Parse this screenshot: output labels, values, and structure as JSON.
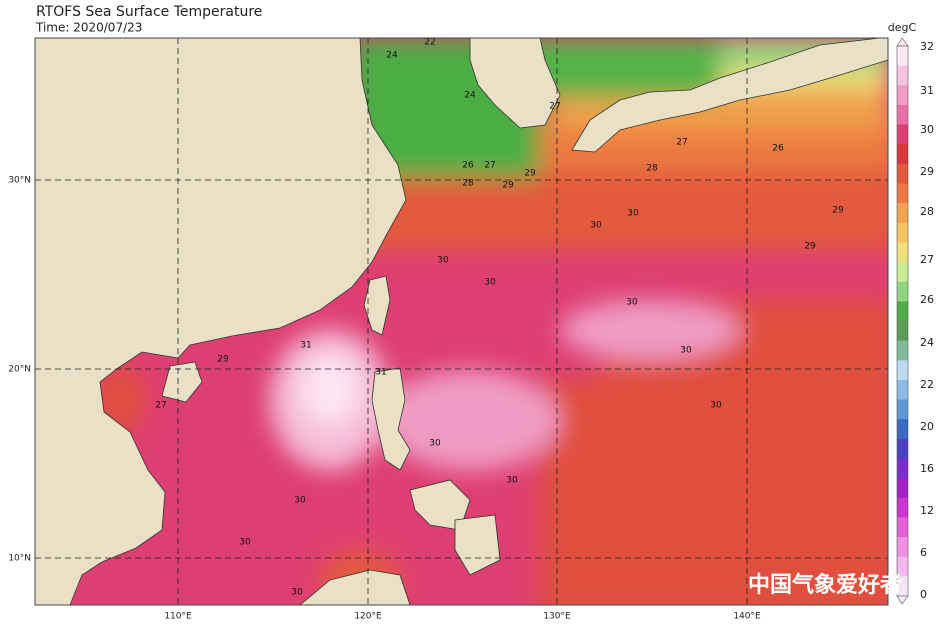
{
  "header": {
    "title": "RTOFS Sea Surface Temperature",
    "time": "Time: 2020/07/23"
  },
  "map": {
    "lat_labels": [
      "30°N",
      "20°N",
      "10°N"
    ],
    "lon_labels": [
      "110°E",
      "120°E",
      "130°E",
      "140°E"
    ]
  },
  "colorbar": {
    "unit": "degC",
    "labels": [
      "32",
      "31",
      "30",
      "29",
      "28",
      "27",
      "26",
      "24",
      "22",
      "20",
      "16",
      "12",
      "6",
      "0"
    ]
  },
  "contour_labels": [
    "22",
    "24",
    "24",
    "26",
    "27",
    "28",
    "29",
    "27",
    "28",
    "29",
    "29",
    "30",
    "30",
    "30",
    "30",
    "31",
    "31",
    "29",
    "30",
    "30",
    "30",
    "30",
    "30",
    "30",
    "30",
    "30",
    "27",
    "26",
    "27",
    "29"
  ],
  "watermark": "中国气象爱好者"
}
